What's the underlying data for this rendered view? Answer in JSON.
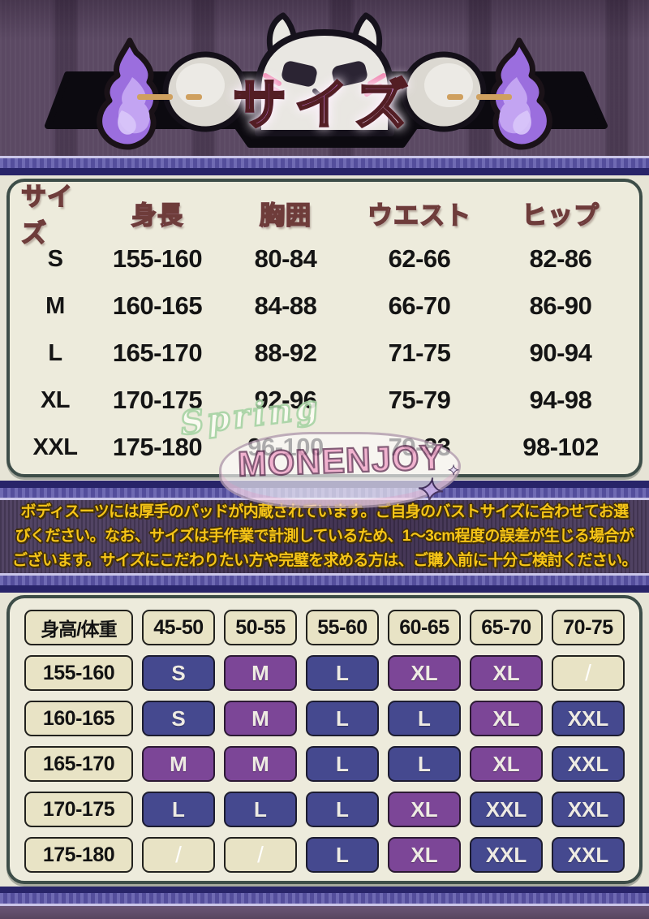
{
  "header": {
    "title": "サイズ",
    "mascot_icon": "cat-ghost-mascot",
    "left_flame_icon": "purple-flame",
    "right_flame_icon": "purple-flame"
  },
  "size_table": {
    "columns": [
      "サイズ",
      "身長",
      "胸囲",
      "ウエスト",
      "ヒップ"
    ],
    "rows": [
      [
        "S",
        "155-160",
        "80-84",
        "62-66",
        "82-86"
      ],
      [
        "M",
        "160-165",
        "84-88",
        "66-70",
        "86-90"
      ],
      [
        "L",
        "165-170",
        "88-92",
        "71-75",
        "90-94"
      ],
      [
        "XL",
        "170-175",
        "92-96",
        "75-79",
        "94-98"
      ],
      [
        "XXL",
        "175-180",
        "96-100",
        "79-83",
        "98-102"
      ]
    ]
  },
  "notice": {
    "lines": [
      "ボディスーツには厚手のパッドが内蔵されています。ご自身のバストサイズに合わせてお選",
      "びください。なお、サイズは手作業で計測しているため、1～3cm程度の誤差が生じる場合が",
      "ございます。サイズにこだわりたい方や完璧を求める方は、ご購入前に十分ご検討ください。"
    ]
  },
  "matrix_table": {
    "corner": "身高/体重",
    "weight_columns": [
      "45-50",
      "50-55",
      "55-60",
      "60-65",
      "65-70",
      "70-75"
    ],
    "rows": [
      {
        "height": "155-160",
        "cells": [
          {
            "v": "S",
            "c": "blue"
          },
          {
            "v": "M",
            "c": "purple"
          },
          {
            "v": "L",
            "c": "blue"
          },
          {
            "v": "XL",
            "c": "purple"
          },
          {
            "v": "XL",
            "c": "purple"
          },
          {
            "v": "/",
            "c": "empty"
          }
        ]
      },
      {
        "height": "160-165",
        "cells": [
          {
            "v": "S",
            "c": "blue"
          },
          {
            "v": "M",
            "c": "purple"
          },
          {
            "v": "L",
            "c": "blue"
          },
          {
            "v": "L",
            "c": "blue"
          },
          {
            "v": "XL",
            "c": "purple"
          },
          {
            "v": "XXL",
            "c": "blue"
          }
        ]
      },
      {
        "height": "165-170",
        "cells": [
          {
            "v": "M",
            "c": "purple"
          },
          {
            "v": "M",
            "c": "purple"
          },
          {
            "v": "L",
            "c": "blue"
          },
          {
            "v": "L",
            "c": "blue"
          },
          {
            "v": "XL",
            "c": "purple"
          },
          {
            "v": "XXL",
            "c": "blue"
          }
        ]
      },
      {
        "height": "170-175",
        "cells": [
          {
            "v": "L",
            "c": "blue"
          },
          {
            "v": "L",
            "c": "blue"
          },
          {
            "v": "L",
            "c": "blue"
          },
          {
            "v": "XL",
            "c": "purple"
          },
          {
            "v": "XXL",
            "c": "blue"
          },
          {
            "v": "XXL",
            "c": "blue"
          }
        ]
      },
      {
        "height": "175-180",
        "cells": [
          {
            "v": "/",
            "c": "empty"
          },
          {
            "v": "/",
            "c": "empty"
          },
          {
            "v": "L",
            "c": "blue"
          },
          {
            "v": "XL",
            "c": "purple"
          },
          {
            "v": "XXL",
            "c": "blue"
          },
          {
            "v": "XXL",
            "c": "blue"
          }
        ]
      }
    ]
  },
  "watermark": {
    "line1": "Spring",
    "line2": "MONENJOY",
    "sparkle": "✦",
    "sparkle_icon": "four-point-star"
  },
  "colors": {
    "size_cell_blue": "#45498f",
    "size_cell_purple": "#7c4697",
    "cell_beige": "#e8e3c5",
    "notice_text": "#f6c517",
    "notice_bg": "#463659",
    "hero_bg": "#5b4963",
    "band_navy": "#282469",
    "band_periwinkle": "#5b55a9",
    "card_bg": "#edebdc",
    "card_border": "#3d4d48",
    "title_outline": "#531e24"
  }
}
